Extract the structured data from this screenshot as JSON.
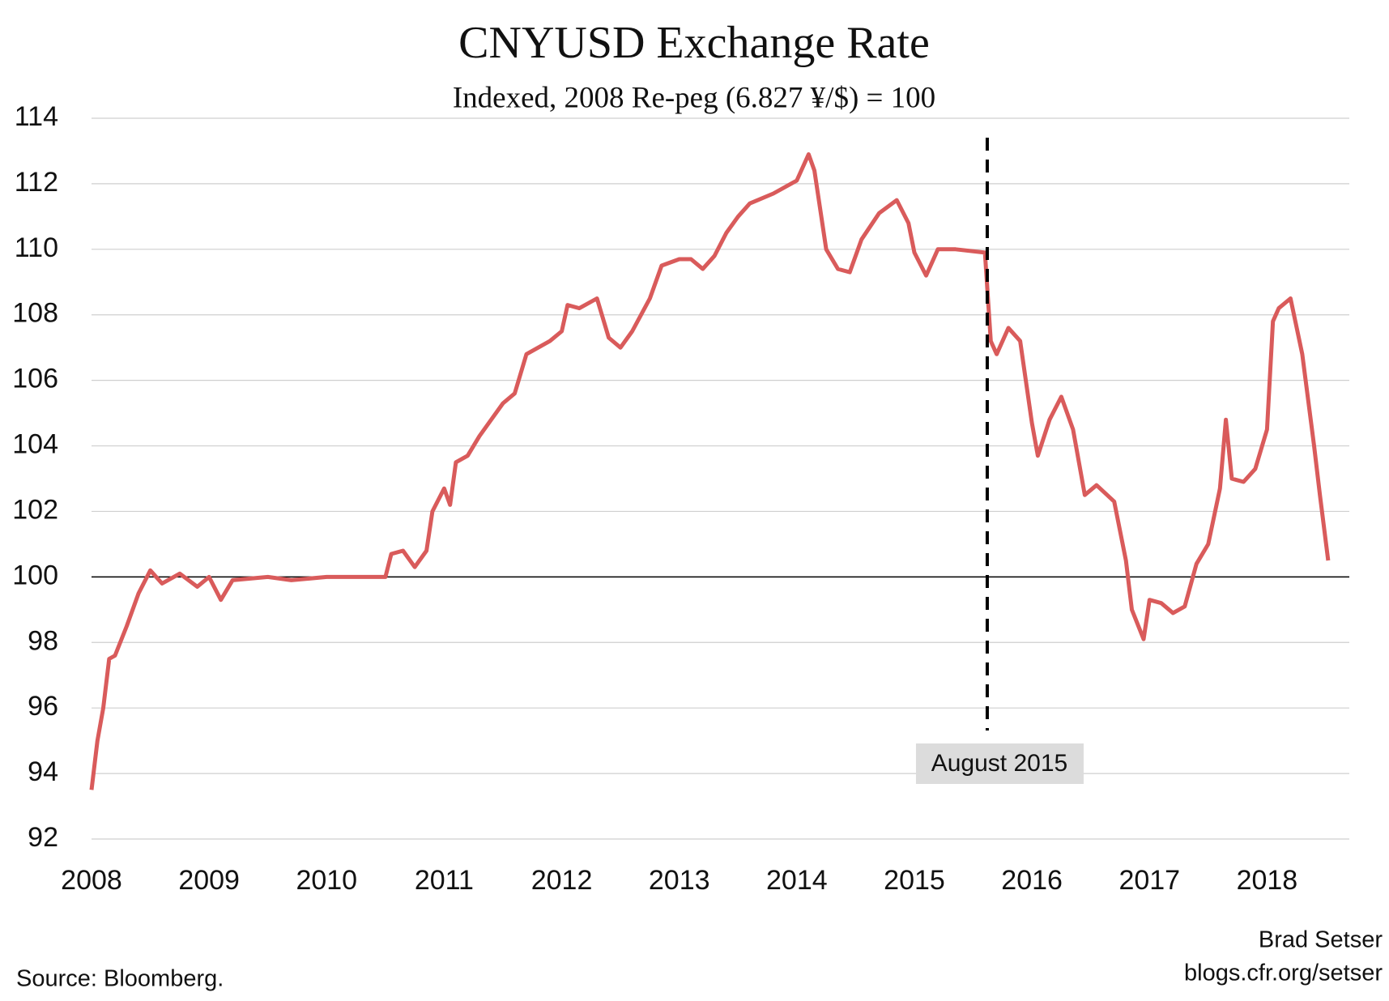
{
  "chart_data": {
    "type": "line",
    "title": "CNYUSD Exchange Rate",
    "subtitle": "Indexed, 2008 Re-peg (6.827 ¥/$) = 100",
    "source": "Source: Bloomberg.",
    "credit": [
      "Brad Setser",
      "blogs.cfr.org/setser"
    ],
    "xlim": [
      2008,
      2018.7
    ],
    "xticks": [
      2008,
      2009,
      2010,
      2011,
      2012,
      2013,
      2014,
      2015,
      2016,
      2017,
      2018
    ],
    "ylim": [
      92,
      114
    ],
    "yticks": [
      92,
      94,
      96,
      98,
      100,
      102,
      104,
      106,
      108,
      110,
      112,
      114
    ],
    "grid": true,
    "reference_line": 100,
    "annotation": {
      "label": "August 2015",
      "x": 2015.62
    },
    "series": [
      {
        "name": "CNYUSD",
        "color": "#d95b5b",
        "x": [
          2008.0,
          2008.05,
          2008.1,
          2008.15,
          2008.2,
          2008.3,
          2008.4,
          2008.5,
          2008.6,
          2008.75,
          2008.9,
          2009.0,
          2009.1,
          2009.2,
          2009.5,
          2009.7,
          2010.0,
          2010.4,
          2010.5,
          2010.55,
          2010.65,
          2010.75,
          2010.85,
          2010.9,
          2011.0,
          2011.05,
          2011.1,
          2011.2,
          2011.3,
          2011.4,
          2011.5,
          2011.6,
          2011.7,
          2011.8,
          2011.9,
          2012.0,
          2012.05,
          2012.15,
          2012.3,
          2012.4,
          2012.5,
          2012.6,
          2012.75,
          2012.85,
          2013.0,
          2013.1,
          2013.2,
          2013.3,
          2013.4,
          2013.5,
          2013.6,
          2013.8,
          2014.0,
          2014.1,
          2014.15,
          2014.25,
          2014.35,
          2014.45,
          2014.55,
          2014.7,
          2014.85,
          2014.95,
          2015.0,
          2015.1,
          2015.2,
          2015.35,
          2015.6,
          2015.65,
          2015.7,
          2015.8,
          2015.9,
          2016.0,
          2016.05,
          2016.15,
          2016.25,
          2016.35,
          2016.45,
          2016.55,
          2016.7,
          2016.8,
          2016.85,
          2016.95,
          2017.0,
          2017.1,
          2017.2,
          2017.3,
          2017.4,
          2017.5,
          2017.6,
          2017.65,
          2017.7,
          2017.8,
          2017.9,
          2018.0,
          2018.05,
          2018.1,
          2018.2,
          2018.3,
          2018.4,
          2018.45,
          2018.52
        ],
        "values": [
          93.5,
          95,
          96,
          97.5,
          97.6,
          98.5,
          99.5,
          100.2,
          99.8,
          100.1,
          99.7,
          100.0,
          99.3,
          99.9,
          100.0,
          99.9,
          100.0,
          100.0,
          100.0,
          100.7,
          100.8,
          100.3,
          100.8,
          102.0,
          102.7,
          102.2,
          103.5,
          103.7,
          104.3,
          104.8,
          105.3,
          105.6,
          106.8,
          107.0,
          107.2,
          107.5,
          108.3,
          108.2,
          108.5,
          107.3,
          107.0,
          107.5,
          108.5,
          109.5,
          109.7,
          109.7,
          109.4,
          109.8,
          110.5,
          111.0,
          111.4,
          111.7,
          112.1,
          112.9,
          112.4,
          110.0,
          109.4,
          109.3,
          110.3,
          111.1,
          111.5,
          110.8,
          109.9,
          109.2,
          110.0,
          110.0,
          109.9,
          107.2,
          106.8,
          107.6,
          107.2,
          104.7,
          103.7,
          104.8,
          105.5,
          104.5,
          102.5,
          102.8,
          102.3,
          100.5,
          99.0,
          98.1,
          99.3,
          99.2,
          98.9,
          99.1,
          100.4,
          101.0,
          102.7,
          104.8,
          103.0,
          102.9,
          103.3,
          104.5,
          107.8,
          108.2,
          108.5,
          106.8,
          104.0,
          102.5,
          100.5
        ]
      }
    ]
  }
}
